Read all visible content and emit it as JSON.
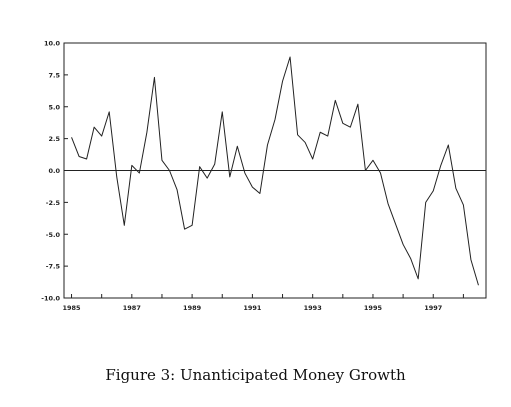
{
  "caption": "Figure 3: Unanticipated Money Growth",
  "chart_data": {
    "type": "line",
    "title": "",
    "xlabel": "",
    "ylabel": "",
    "xlim": [
      1984.75,
      1998.75
    ],
    "ylim": [
      -10.0,
      10.0
    ],
    "x_ticks": [
      1985,
      1987,
      1989,
      1991,
      1993,
      1995,
      1997
    ],
    "y_ticks": [
      "10.0",
      "7.5",
      "5.0",
      "2.5",
      "0.0",
      "-2.5",
      "-5.0",
      "-7.5",
      "-10.0"
    ],
    "y_tick_values": [
      10,
      7.5,
      5,
      2.5,
      0,
      -2.5,
      -5,
      -7.5,
      -10
    ],
    "zero_line": true,
    "grid": false,
    "legend": "none",
    "series": [
      {
        "x": [
          1985.0,
          1985.25,
          1985.5,
          1985.75,
          1986.0,
          1986.25,
          1986.5,
          1986.75,
          1987.0,
          1987.25,
          1987.5,
          1987.75,
          1988.0,
          1988.25,
          1988.5,
          1988.75,
          1989.0,
          1989.25,
          1989.5,
          1989.75,
          1990.0,
          1990.25,
          1990.5,
          1990.75,
          1991.0,
          1991.25,
          1991.5,
          1991.75,
          1992.0,
          1992.25,
          1992.5,
          1992.75,
          1993.0,
          1993.25,
          1993.5,
          1993.75,
          1994.0,
          1994.25,
          1994.5,
          1994.75,
          1995.0,
          1995.25,
          1995.5,
          1995.75,
          1996.0,
          1996.25,
          1996.5,
          1996.75,
          1997.0,
          1997.25,
          1997.5,
          1997.75,
          1998.0,
          1998.25,
          1998.5
        ],
        "values": [
          2.6,
          1.1,
          0.9,
          3.4,
          2.7,
          4.6,
          -0.5,
          -4.3,
          0.4,
          -0.2,
          3.0,
          7.3,
          0.8,
          0.0,
          -1.5,
          -4.6,
          -4.3,
          0.3,
          -0.6,
          0.5,
          4.6,
          -0.5,
          1.9,
          -0.2,
          -1.3,
          -1.8,
          2.0,
          4.0,
          7.0,
          8.9,
          2.8,
          2.2,
          0.9,
          3.0,
          2.7,
          5.5,
          3.7,
          3.4,
          5.2,
          0.0,
          0.8,
          -0.2,
          -2.6,
          -4.2,
          -5.8,
          -6.9,
          -8.5,
          -2.5,
          -1.6,
          0.4,
          2.0,
          -1.4,
          -2.7,
          -7.0,
          -9.0
        ],
        "color": "#222222"
      }
    ]
  }
}
